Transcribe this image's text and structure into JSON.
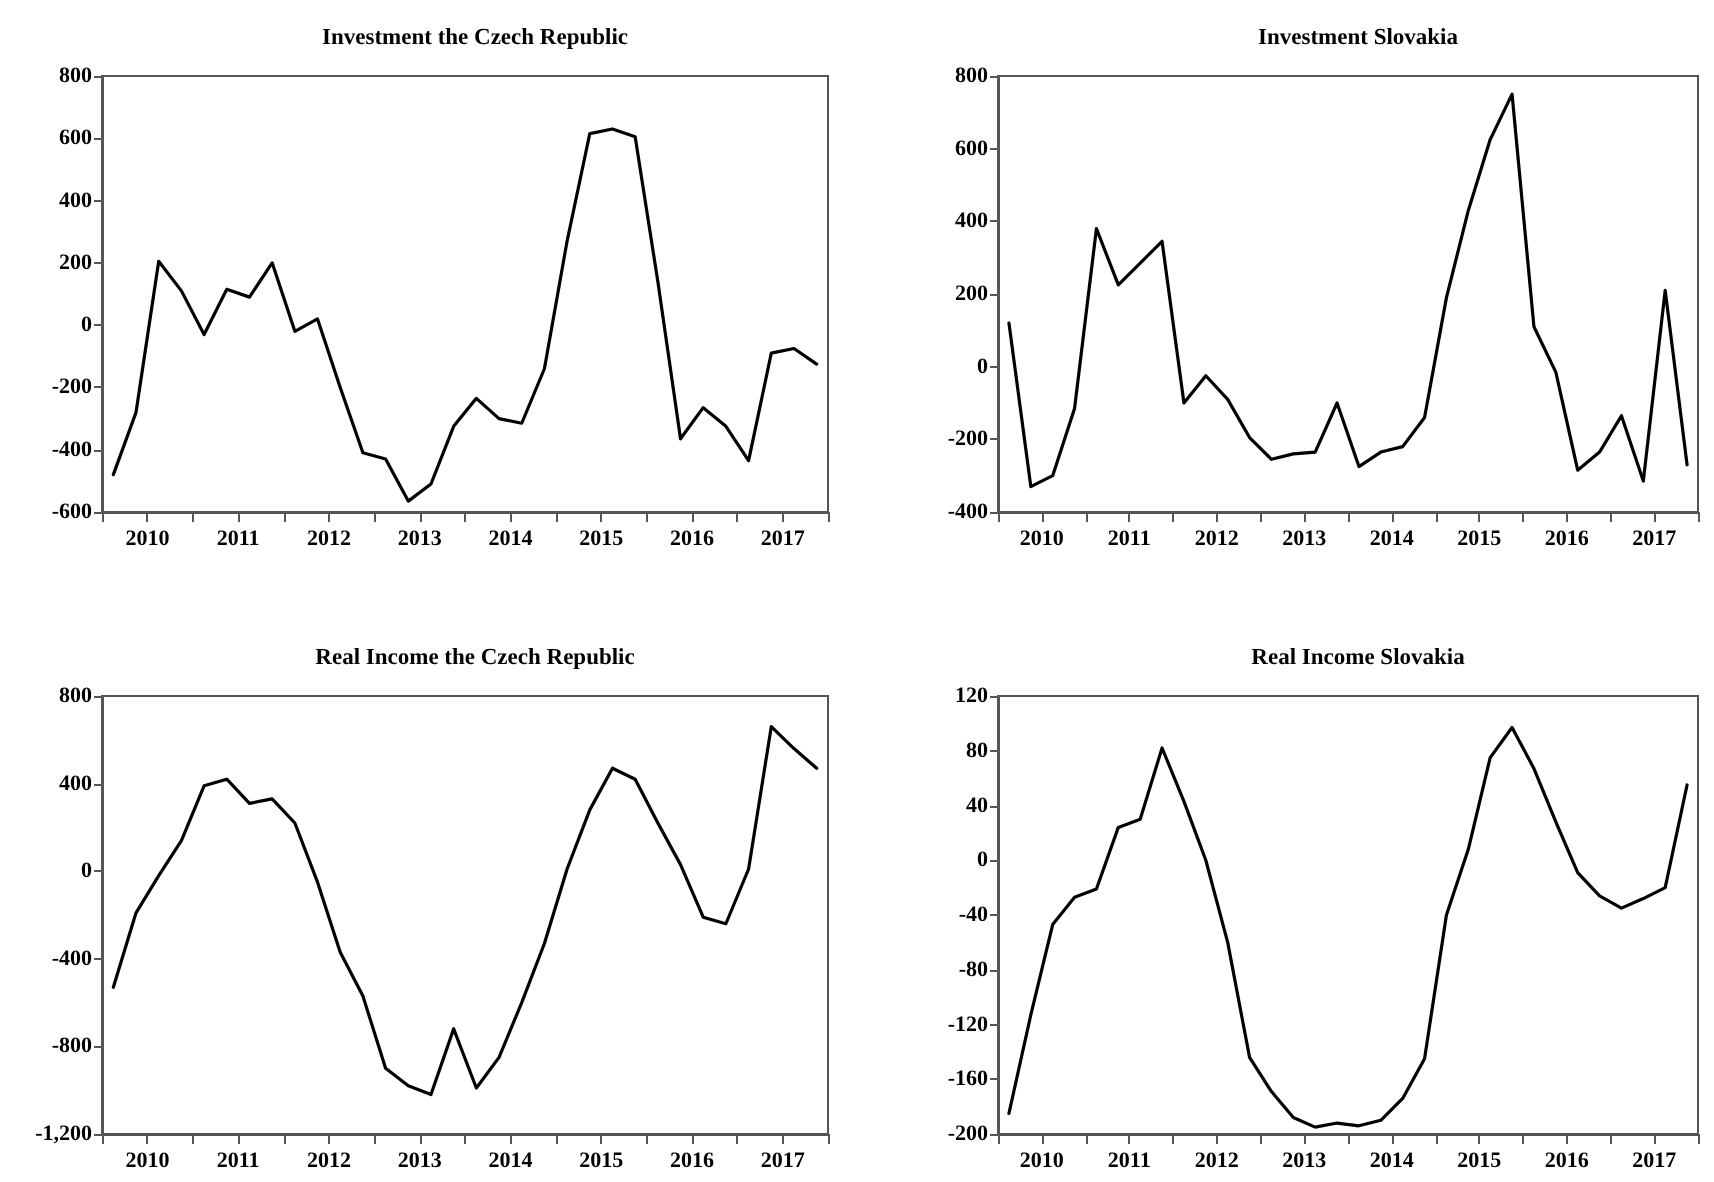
{
  "chart_data": [
    {
      "type": "line",
      "title": "Investment the Czech Republic",
      "color": "#000000",
      "marker": "none",
      "x": [
        2010.125,
        2010.375,
        2010.625,
        2010.875,
        2011.125,
        2011.375,
        2011.625,
        2011.875,
        2012.125,
        2012.375,
        2012.625,
        2012.875,
        2013.125,
        2013.375,
        2013.625,
        2013.875,
        2014.125,
        2014.375,
        2014.625,
        2014.875,
        2015.125,
        2015.375,
        2015.625,
        2015.875,
        2016.125,
        2016.375,
        2016.625,
        2016.875,
        2017.125,
        2017.375,
        2017.625,
        2017.875
      ],
      "values": [
        -480,
        -280,
        205,
        110,
        -30,
        115,
        90,
        200,
        -20,
        20,
        -200,
        -410,
        -430,
        -565,
        -510,
        -325,
        -235,
        -300,
        -315,
        -140,
        270,
        615,
        630,
        605,
        140,
        -365,
        -265,
        -325,
        -435,
        -90,
        -75,
        -125
      ],
      "xlim": [
        2010,
        2018
      ],
      "xticks": [
        {
          "value": 2010,
          "label": null
        },
        {
          "value": 2010.5,
          "label": "2010"
        },
        {
          "value": 2011,
          "label": null
        },
        {
          "value": 2011.5,
          "label": "2011"
        },
        {
          "value": 2012,
          "label": null
        },
        {
          "value": 2012.5,
          "label": "2012"
        },
        {
          "value": 2013,
          "label": null
        },
        {
          "value": 2013.5,
          "label": "2013"
        },
        {
          "value": 2014,
          "label": null
        },
        {
          "value": 2014.5,
          "label": "2014"
        },
        {
          "value": 2015,
          "label": null
        },
        {
          "value": 2015.5,
          "label": "2015"
        },
        {
          "value": 2016,
          "label": null
        },
        {
          "value": 2016.5,
          "label": "2016"
        },
        {
          "value": 2017,
          "label": null
        },
        {
          "value": 2017.5,
          "label": "2017"
        },
        {
          "value": 2018,
          "label": null
        }
      ],
      "ylim": [
        -600,
        800
      ],
      "yticks": [
        -600,
        -400,
        -200,
        0,
        200,
        400,
        600,
        800
      ]
    },
    {
      "type": "line",
      "title": "Investment Slovakia",
      "color": "#000000",
      "marker": "none",
      "x": [
        2010.125,
        2010.375,
        2010.625,
        2010.875,
        2011.125,
        2011.375,
        2011.625,
        2011.875,
        2012.125,
        2012.375,
        2012.625,
        2012.875,
        2013.125,
        2013.375,
        2013.625,
        2013.875,
        2014.125,
        2014.375,
        2014.625,
        2014.875,
        2015.125,
        2015.375,
        2015.625,
        2015.875,
        2016.125,
        2016.375,
        2016.625,
        2016.875,
        2017.125,
        2017.375,
        2017.625,
        2017.875
      ],
      "values": [
        120,
        -330,
        -300,
        -115,
        380,
        225,
        285,
        345,
        -100,
        -25,
        -90,
        -195,
        -255,
        -240,
        -235,
        -100,
        -275,
        -235,
        -220,
        -140,
        190,
        430,
        625,
        750,
        110,
        -15,
        -285,
        -235,
        -135,
        -315,
        210,
        -270
      ],
      "xlim": [
        2010,
        2018
      ],
      "xticks": [
        {
          "value": 2010,
          "label": null
        },
        {
          "value": 2010.5,
          "label": "2010"
        },
        {
          "value": 2011,
          "label": null
        },
        {
          "value": 2011.5,
          "label": "2011"
        },
        {
          "value": 2012,
          "label": null
        },
        {
          "value": 2012.5,
          "label": "2012"
        },
        {
          "value": 2013,
          "label": null
        },
        {
          "value": 2013.5,
          "label": "2013"
        },
        {
          "value": 2014,
          "label": null
        },
        {
          "value": 2014.5,
          "label": "2014"
        },
        {
          "value": 2015,
          "label": null
        },
        {
          "value": 2015.5,
          "label": "2015"
        },
        {
          "value": 2016,
          "label": null
        },
        {
          "value": 2016.5,
          "label": "2016"
        },
        {
          "value": 2017,
          "label": null
        },
        {
          "value": 2017.5,
          "label": "2017"
        },
        {
          "value": 2018,
          "label": null
        }
      ],
      "ylim": [
        -400,
        800
      ],
      "yticks": [
        -400,
        -200,
        0,
        200,
        400,
        600,
        800
      ]
    },
    {
      "type": "line",
      "title": "Real Income the Czech Republic",
      "color": "#000000",
      "marker": "none",
      "x": [
        2010.125,
        2010.375,
        2010.625,
        2010.875,
        2011.125,
        2011.375,
        2011.625,
        2011.875,
        2012.125,
        2012.375,
        2012.625,
        2012.875,
        2013.125,
        2013.375,
        2013.625,
        2013.875,
        2014.125,
        2014.375,
        2014.625,
        2014.875,
        2015.125,
        2015.375,
        2015.625,
        2015.875,
        2016.125,
        2016.375,
        2016.625,
        2016.875,
        2017.125,
        2017.375,
        2017.625,
        2017.875
      ],
      "values": [
        -530,
        -190,
        -20,
        140,
        390,
        420,
        310,
        330,
        220,
        -50,
        -370,
        -570,
        -900,
        -980,
        -1020,
        -720,
        -990,
        -850,
        -600,
        -330,
        10,
        280,
        470,
        420,
        220,
        30,
        -210,
        -240,
        10,
        660,
        560,
        470
      ],
      "xlim": [
        2010,
        2018
      ],
      "xticks": [
        {
          "value": 2010,
          "label": null
        },
        {
          "value": 2010.5,
          "label": "2010"
        },
        {
          "value": 2011,
          "label": null
        },
        {
          "value": 2011.5,
          "label": "2011"
        },
        {
          "value": 2012,
          "label": null
        },
        {
          "value": 2012.5,
          "label": "2012"
        },
        {
          "value": 2013,
          "label": null
        },
        {
          "value": 2013.5,
          "label": "2013"
        },
        {
          "value": 2014,
          "label": null
        },
        {
          "value": 2014.5,
          "label": "2014"
        },
        {
          "value": 2015,
          "label": null
        },
        {
          "value": 2015.5,
          "label": "2015"
        },
        {
          "value": 2016,
          "label": null
        },
        {
          "value": 2016.5,
          "label": "2016"
        },
        {
          "value": 2017,
          "label": null
        },
        {
          "value": 2017.5,
          "label": "2017"
        },
        {
          "value": 2018,
          "label": null
        }
      ],
      "ylim": [
        -1200,
        800
      ],
      "yticks": [
        {
          "value": -1200,
          "label": "-1,200"
        },
        -800,
        -400,
        0,
        400,
        800
      ]
    },
    {
      "type": "line",
      "title": "Real Income Slovakia",
      "color": "#000000",
      "marker": "none",
      "x": [
        2010.125,
        2010.375,
        2010.625,
        2010.875,
        2011.125,
        2011.375,
        2011.625,
        2011.875,
        2012.125,
        2012.375,
        2012.625,
        2012.875,
        2013.125,
        2013.375,
        2013.625,
        2013.875,
        2014.125,
        2014.375,
        2014.625,
        2014.875,
        2015.125,
        2015.375,
        2015.625,
        2015.875,
        2016.125,
        2016.375,
        2016.625,
        2016.875,
        2017.125,
        2017.375,
        2017.625,
        2017.875
      ],
      "values": [
        -185,
        -113,
        -47,
        -27,
        -21,
        24,
        30,
        82,
        43,
        0,
        -60,
        -144,
        -169,
        -188,
        -195,
        -192,
        -194,
        -190,
        -174,
        -145,
        -40,
        8,
        75,
        97,
        67,
        28,
        -9,
        -26,
        -35,
        -28,
        -20,
        55
      ],
      "xlim": [
        2010,
        2018
      ],
      "xticks": [
        {
          "value": 2010,
          "label": null
        },
        {
          "value": 2010.5,
          "label": "2010"
        },
        {
          "value": 2011,
          "label": null
        },
        {
          "value": 2011.5,
          "label": "2011"
        },
        {
          "value": 2012,
          "label": null
        },
        {
          "value": 2012.5,
          "label": "2012"
        },
        {
          "value": 2013,
          "label": null
        },
        {
          "value": 2013.5,
          "label": "2013"
        },
        {
          "value": 2014,
          "label": null
        },
        {
          "value": 2014.5,
          "label": "2014"
        },
        {
          "value": 2015,
          "label": null
        },
        {
          "value": 2015.5,
          "label": "2015"
        },
        {
          "value": 2016,
          "label": null
        },
        {
          "value": 2016.5,
          "label": "2016"
        },
        {
          "value": 2017,
          "label": null
        },
        {
          "value": 2017.5,
          "label": "2017"
        },
        {
          "value": 2018,
          "label": null
        }
      ],
      "ylim": [
        -200,
        120
      ],
      "yticks": [
        -200,
        -160,
        -120,
        -80,
        -40,
        0,
        40,
        80,
        120
      ]
    }
  ]
}
